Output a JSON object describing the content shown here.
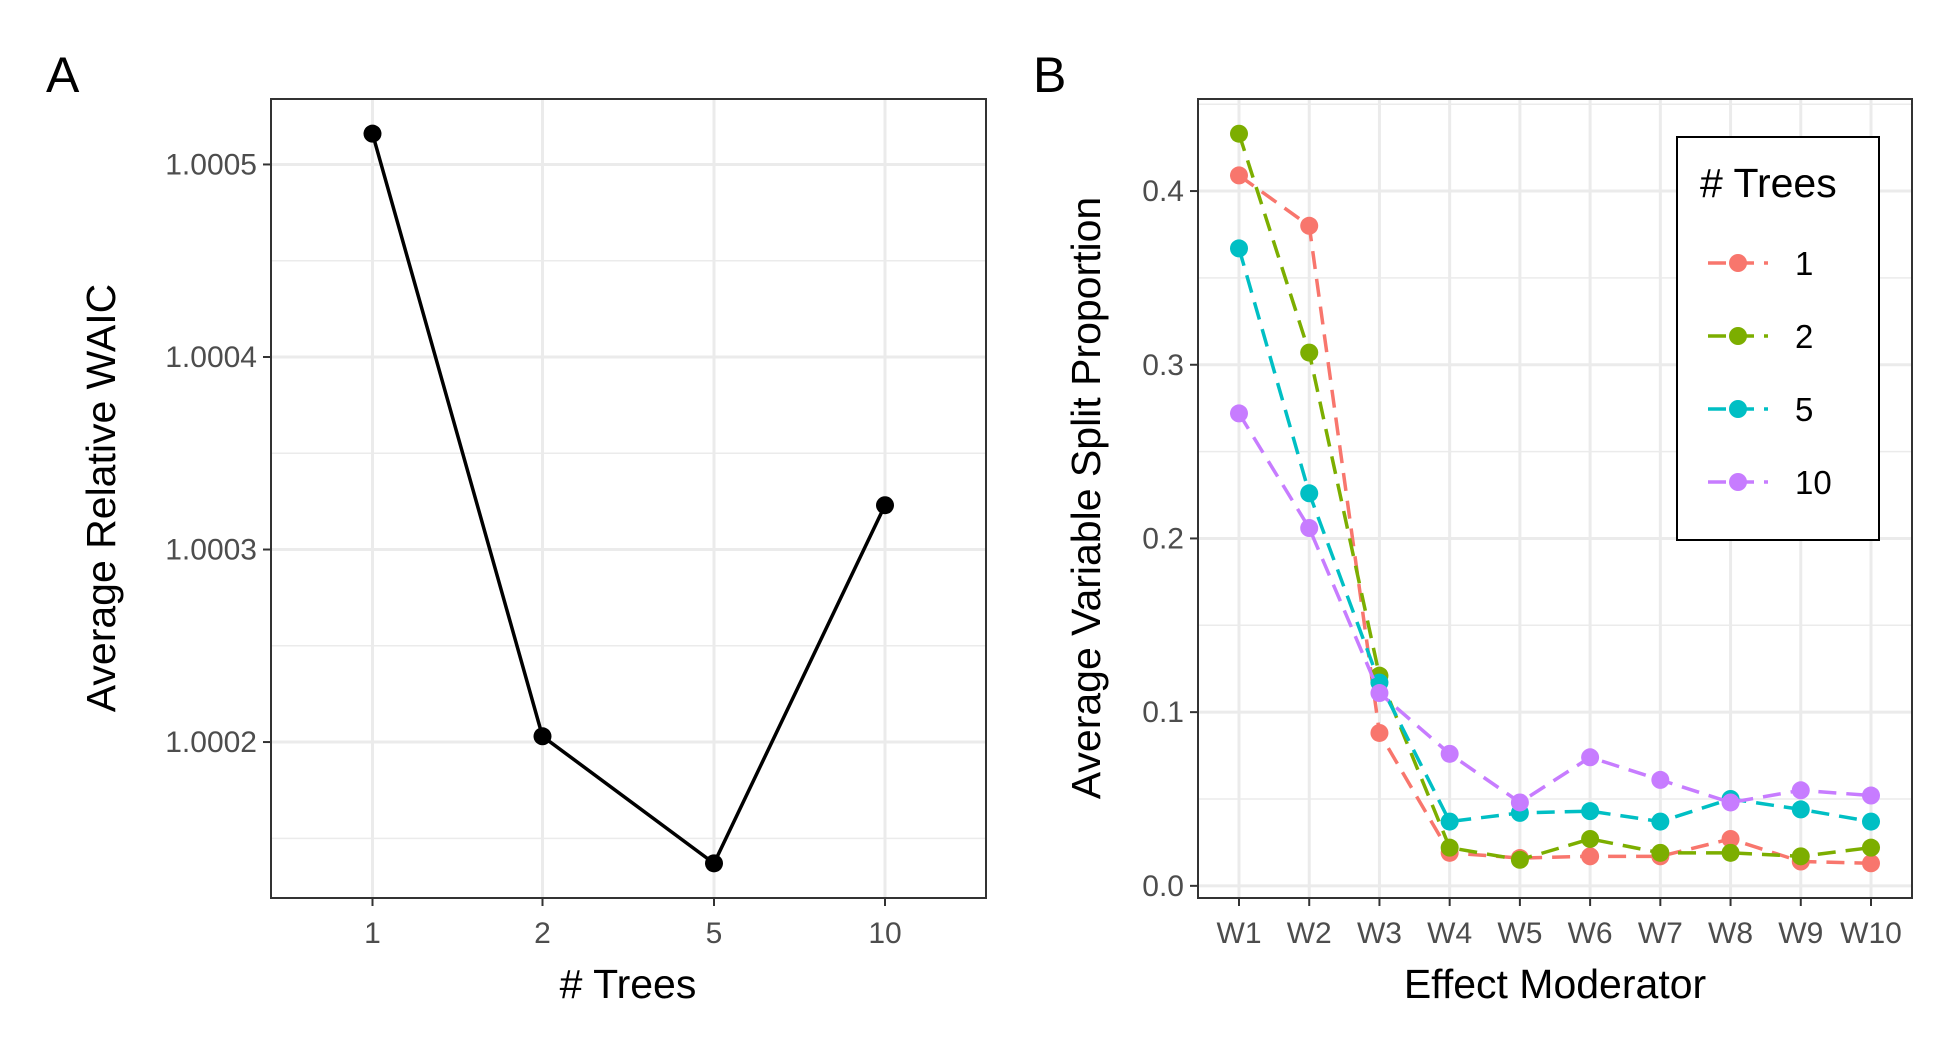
{
  "chart_data": [
    {
      "panel_label": "A",
      "type": "line",
      "xlabel": "# Trees",
      "ylabel": "Average Relative WAIC",
      "categories": [
        "1",
        "2",
        "5",
        "10"
      ],
      "values": [
        1.000516,
        1.000203,
        1.000137,
        1.000323
      ],
      "yticks": [
        "1.0002",
        "1.0003",
        "1.0004",
        "1.0005"
      ],
      "ylim": [
        1.000119,
        1.000534
      ],
      "grid": true,
      "color": "#000000"
    },
    {
      "panel_label": "B",
      "type": "line",
      "xlabel": "Effect Moderator",
      "ylabel": "Average Variable Split Proportion",
      "categories": [
        "W1",
        "W2",
        "W3",
        "W4",
        "W5",
        "W6",
        "W7",
        "W8",
        "W9",
        "W10"
      ],
      "yticks": [
        "0.0",
        "0.1",
        "0.2",
        "0.3",
        "0.4"
      ],
      "ylim": [
        -0.007,
        0.453
      ],
      "grid": true,
      "line_style": "dashed",
      "legend": {
        "title": "# Trees",
        "placement": "top-right"
      },
      "series": [
        {
          "name": "1",
          "color": "#F8766D",
          "values": [
            0.409,
            0.38,
            0.088,
            0.019,
            0.016,
            0.017,
            0.017,
            0.027,
            0.014,
            0.013
          ]
        },
        {
          "name": "2",
          "color": "#7CAE00",
          "values": [
            0.433,
            0.307,
            0.121,
            0.022,
            0.015,
            0.027,
            0.019,
            0.019,
            0.017,
            0.022
          ]
        },
        {
          "name": "5",
          "color": "#00BFC4",
          "values": [
            0.367,
            0.226,
            0.117,
            0.037,
            0.042,
            0.043,
            0.037,
            0.05,
            0.044,
            0.037
          ]
        },
        {
          "name": "10",
          "color": "#C77CFF",
          "values": [
            0.272,
            0.206,
            0.111,
            0.076,
            0.048,
            0.074,
            0.061,
            0.048,
            0.055,
            0.052
          ]
        }
      ]
    }
  ]
}
